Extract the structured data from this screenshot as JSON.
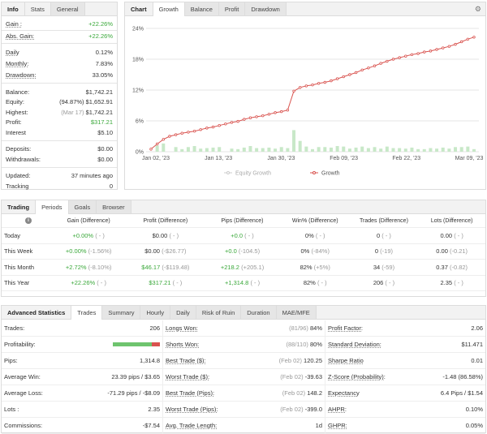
{
  "info": {
    "tabs": [
      "Info",
      "Stats",
      "General"
    ],
    "gain": {
      "label": "Gain :",
      "value": "+22.26%"
    },
    "abs_gain": {
      "label": "Abs. Gain:",
      "value": "+22.26%"
    },
    "daily": {
      "label": "Daily",
      "value": "0.12%"
    },
    "monthly": {
      "label": "Monthly:",
      "value": "7.83%"
    },
    "drawdown": {
      "label": "Drawdown:",
      "value": "33.05%"
    },
    "balance": {
      "label": "Balance:",
      "value": "$1,742.21"
    },
    "equity": {
      "label": "Equity:",
      "note": "(94.87%)",
      "value": "$1,652.91"
    },
    "highest": {
      "label": "Highest:",
      "note": "(Mar 17)",
      "value": "$1,742.21"
    },
    "profit": {
      "label": "Profit:",
      "value": "$317.21"
    },
    "interest": {
      "label": "Interest",
      "value": "$5.10"
    },
    "deposits": {
      "label": "Deposits:",
      "value": "$0.00"
    },
    "withdrawals": {
      "label": "Withdrawals:",
      "value": "$0.00"
    },
    "updated": {
      "label": "Updated:",
      "value": "37 minutes ago"
    },
    "tracking": {
      "label": "Tracking",
      "value": "0"
    }
  },
  "chart_panel": {
    "tabs": [
      "Chart",
      "Growth",
      "Balance",
      "Profit",
      "Drawdown"
    ],
    "legend": [
      "Equity Growth",
      "Growth"
    ],
    "colors": {
      "growth": "#d9534f",
      "equity": "#cccccc",
      "bars": "#c8e8c8"
    }
  },
  "chart_data": {
    "type": "line",
    "y_ticks": [
      "0%",
      "6%",
      "12%",
      "18%",
      "24%"
    ],
    "ylim": [
      0,
      24
    ],
    "x_ticks": [
      "Jan 02, '23",
      "Jan 13, '23",
      "Jan 30, '23",
      "Feb 09, '23",
      "Feb 22, '23",
      "Mar 09, '23"
    ],
    "series": [
      {
        "name": "Growth",
        "values": [
          0.5,
          1.5,
          2.4,
          3.0,
          3.3,
          3.6,
          3.8,
          4.0,
          4.3,
          4.6,
          4.8,
          5.1,
          5.4,
          5.7,
          5.9,
          6.3,
          6.6,
          6.8,
          7.0,
          7.3,
          7.6,
          7.8,
          8.1,
          11.8,
          12.5,
          12.8,
          13.0,
          13.3,
          13.5,
          13.8,
          14.2,
          14.6,
          15.0,
          15.4,
          15.9,
          16.3,
          16.7,
          17.2,
          17.6,
          18.0,
          18.3,
          18.6,
          18.9,
          19.1,
          19.4,
          19.6,
          19.9,
          20.2,
          20.5,
          20.9,
          21.4,
          21.9,
          22.3
        ]
      },
      {
        "name": "Equity Growth",
        "values": []
      }
    ],
    "daily_bars": [
      0,
      1.2,
      1.6,
      0,
      0.9,
      0.5,
      0.9,
      1.1,
      0.6,
      0.7,
      0.8,
      0.9,
      0,
      0.6,
      0.5,
      0.8,
      1.1,
      0.7,
      0.7,
      0.8,
      0.6,
      0.9,
      0.7,
      4.2,
      2.1,
      1.0,
      0.5,
      0.9,
      0.9,
      0.8,
      1.1,
      1.0,
      0.6,
      0.8,
      1.0,
      0.7,
      0.9,
      0.6,
      1.0,
      0.7,
      0.7,
      0.6,
      0.8,
      0.5,
      0.5,
      0.7,
      0.6,
      0.8,
      0.6,
      0.9,
      0.9,
      1.0,
      0.5
    ]
  },
  "trading": {
    "tabs": [
      "Trading",
      "Periods",
      "Goals",
      "Browser"
    ],
    "headers": [
      "Gain (Difference)",
      "Profit (Difference)",
      "Pips (Difference)",
      "Win% (Difference)",
      "Trades (Difference)",
      "Lots (Difference)"
    ],
    "rows": [
      {
        "period": "Today",
        "gain": "+0.00%",
        "gain_d": "( - )",
        "profit": "$0.00",
        "profit_d": "( - )",
        "pips": "+0.0",
        "pips_d": "( - )",
        "win": "0%",
        "win_d": "( - )",
        "trades": "0",
        "trades_d": "( - )",
        "lots": "0.00",
        "lots_d": "( - )"
      },
      {
        "period": "This Week",
        "gain": "+0.00%",
        "gain_d": "(-1.56%)",
        "profit": "$0.00",
        "profit_d": "(-$26.77)",
        "pips": "+0.0",
        "pips_d": "(-104.5)",
        "win": "0%",
        "win_d": "(-84%)",
        "trades": "0",
        "trades_d": "(-19)",
        "lots": "0.00",
        "lots_d": "(-0.21)"
      },
      {
        "period": "This Month",
        "gain": "+2.72%",
        "gain_d": "(-8.10%)",
        "profit": "$46.17",
        "profit_d": "(-$119.48)",
        "pips": "+218.2",
        "pips_d": "(+205.1)",
        "win": "82%",
        "win_d": "(+5%)",
        "trades": "34",
        "trades_d": "(-59)",
        "lots": "0.37",
        "lots_d": "(-0.82)"
      },
      {
        "period": "This Year",
        "gain": "+22.26%",
        "gain_d": "( - )",
        "profit": "$317.21",
        "profit_d": "( - )",
        "pips": "+1,314.8",
        "pips_d": "( - )",
        "win": "82%",
        "win_d": "( - )",
        "trades": "206",
        "trades_d": "( - )",
        "lots": "2.35",
        "lots_d": "( - )"
      }
    ]
  },
  "advanced": {
    "tabs": [
      "Advanced Statistics",
      "Trades",
      "Summary",
      "Hourly",
      "Daily",
      "Risk of Ruin",
      "Duration",
      "MAE/MFE"
    ],
    "col1": [
      {
        "label": "Trades:",
        "value": "206"
      },
      {
        "label": "Profitability:",
        "value": ""
      },
      {
        "label": "Pips:",
        "value": "1,314.8"
      },
      {
        "label": "Average Win:",
        "value": "23.39 pips / $3.65"
      },
      {
        "label": "Average Loss:",
        "value": "-71.29 pips / -$8.09"
      },
      {
        "label": "Lots :",
        "value": "2.35"
      },
      {
        "label": "Commissions:",
        "value": "-$7.54"
      }
    ],
    "profitability_pct": 82,
    "col2": [
      {
        "label": "Longs Won:",
        "note": "(81/96)",
        "value": "84%"
      },
      {
        "label": "Shorts Won:",
        "note": "(88/110)",
        "value": "80%"
      },
      {
        "label": "Best Trade ($):",
        "note": "(Feb 02)",
        "value": "120.25"
      },
      {
        "label": "Worst Trade ($):",
        "note": "(Feb 02)",
        "value": "-39.63"
      },
      {
        "label": "Best Trade (Pips):",
        "note": "(Feb 02)",
        "value": "148.2"
      },
      {
        "label": "Worst Trade (Pips):",
        "note": "(Feb 02)",
        "value": "-399.0"
      },
      {
        "label": "Avg. Trade Length:",
        "note": "",
        "value": "1d"
      }
    ],
    "col3": [
      {
        "label": "Profit Factor:",
        "value": "2.06"
      },
      {
        "label": "Standard Deviation:",
        "value": "$11.471"
      },
      {
        "label": "Sharpe Ratio",
        "value": "0.01"
      },
      {
        "label": "Z-Score (Probability):",
        "value": "-1.48 (86.58%)"
      },
      {
        "label": "Expectancy",
        "value": "6.4 Pips / $1.54"
      },
      {
        "label": "AHPR:",
        "value": "0.10%"
      },
      {
        "label": "GHPR:",
        "value": "0.05%"
      }
    ]
  }
}
